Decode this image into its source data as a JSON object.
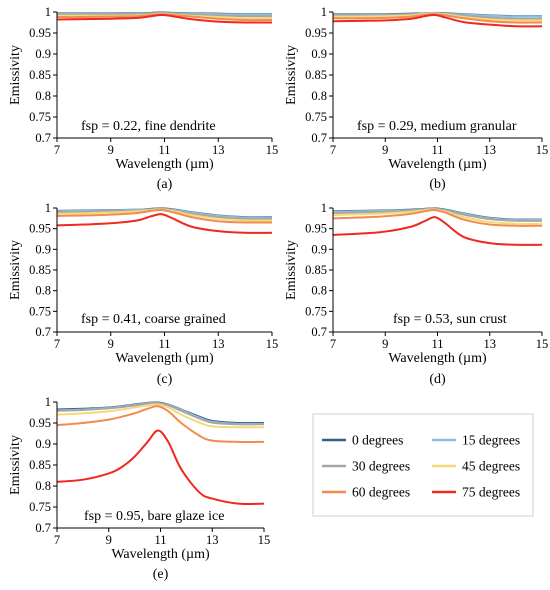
{
  "colors": {
    "0 degrees": "#2f5f8a",
    "15 degrees": "#8dbfe0",
    "30 degrees": "#a6a6a6",
    "45 degrees": "#f6d878",
    "60 degrees": "#f28c4e",
    "75 degrees": "#f0281e"
  },
  "legend": {
    "entries": [
      "0 degrees",
      "15 degrees",
      "30 degrees",
      "45 degrees",
      "60 degrees",
      "75 degrees"
    ]
  },
  "chart_data": [
    {
      "type": "line",
      "caption": "(a)",
      "annotation": "fsp = 0.22, fine dendrite",
      "xlabel": "Wavelength (µm)",
      "ylabel": "Emissivity",
      "xlim": [
        7,
        15
      ],
      "ylim": [
        0.7,
        1
      ],
      "xticks": [
        "7",
        "9",
        "11",
        "13",
        "15"
      ],
      "yticks": [
        "0.7",
        "0.75",
        "0.8",
        "0.85",
        "0.9",
        "0.95",
        "1"
      ],
      "x": [
        7,
        8,
        9,
        10,
        10.5,
        10.9,
        11.3,
        12,
        13,
        14,
        15
      ],
      "series": [
        {
          "name": "0 degrees",
          "values": [
            0.997,
            0.997,
            0.997,
            0.997,
            0.998,
            0.999,
            0.998,
            0.997,
            0.996,
            0.995,
            0.995
          ]
        },
        {
          "name": "15 degrees",
          "values": [
            0.996,
            0.996,
            0.996,
            0.996,
            0.997,
            0.998,
            0.997,
            0.996,
            0.995,
            0.994,
            0.994
          ]
        },
        {
          "name": "30 degrees",
          "values": [
            0.994,
            0.994,
            0.994,
            0.995,
            0.996,
            0.997,
            0.996,
            0.994,
            0.992,
            0.99,
            0.99
          ]
        },
        {
          "name": "45 degrees",
          "values": [
            0.991,
            0.991,
            0.991,
            0.992,
            0.994,
            0.996,
            0.994,
            0.991,
            0.988,
            0.985,
            0.985
          ]
        },
        {
          "name": "60 degrees",
          "values": [
            0.988,
            0.988,
            0.989,
            0.99,
            0.993,
            0.995,
            0.993,
            0.989,
            0.984,
            0.981,
            0.981
          ]
        },
        {
          "name": "75 degrees",
          "values": [
            0.982,
            0.983,
            0.984,
            0.986,
            0.99,
            0.993,
            0.99,
            0.983,
            0.977,
            0.975,
            0.975
          ]
        }
      ]
    },
    {
      "type": "line",
      "caption": "(b)",
      "annotation": "fsp = 0.29, medium granular",
      "xlabel": "Wavelength (µm)",
      "ylabel": "Emissivity",
      "xlim": [
        7,
        15
      ],
      "ylim": [
        0.7,
        1
      ],
      "xticks": [
        "7",
        "9",
        "11",
        "13",
        "15"
      ],
      "yticks": [
        "0.7",
        "0.75",
        "0.8",
        "0.85",
        "0.9",
        "0.95",
        "1"
      ],
      "x": [
        7,
        8,
        9,
        10,
        10.5,
        10.9,
        11.3,
        12,
        13,
        14,
        15
      ],
      "series": [
        {
          "name": "0 degrees",
          "values": [
            0.995,
            0.995,
            0.995,
            0.996,
            0.997,
            0.998,
            0.997,
            0.995,
            0.992,
            0.99,
            0.99
          ]
        },
        {
          "name": "15 degrees",
          "values": [
            0.994,
            0.994,
            0.994,
            0.995,
            0.997,
            0.998,
            0.996,
            0.994,
            0.991,
            0.989,
            0.989
          ]
        },
        {
          "name": "30 degrees",
          "values": [
            0.992,
            0.992,
            0.992,
            0.994,
            0.996,
            0.997,
            0.995,
            0.991,
            0.987,
            0.984,
            0.984
          ]
        },
        {
          "name": "45 degrees",
          "values": [
            0.989,
            0.989,
            0.99,
            0.992,
            0.995,
            0.996,
            0.994,
            0.988,
            0.982,
            0.98,
            0.98
          ]
        },
        {
          "name": "60 degrees",
          "values": [
            0.985,
            0.985,
            0.986,
            0.989,
            0.993,
            0.995,
            0.992,
            0.985,
            0.978,
            0.975,
            0.975
          ]
        },
        {
          "name": "75 degrees",
          "values": [
            0.978,
            0.979,
            0.98,
            0.984,
            0.99,
            0.993,
            0.987,
            0.976,
            0.97,
            0.966,
            0.966
          ]
        }
      ]
    },
    {
      "type": "line",
      "caption": "(c)",
      "annotation": "fsp = 0.41, coarse grained",
      "xlabel": "Wavelength (µm)",
      "ylabel": "Emissivity",
      "xlim": [
        7,
        15
      ],
      "ylim": [
        0.7,
        1
      ],
      "xticks": [
        "7",
        "9",
        "11",
        "13",
        "15"
      ],
      "yticks": [
        "0.7",
        "0.75",
        "0.8",
        "0.85",
        "0.9",
        "0.95",
        "1"
      ],
      "x": [
        7,
        8,
        9,
        10,
        10.5,
        10.9,
        11.3,
        12,
        13,
        14,
        15
      ],
      "series": [
        {
          "name": "0 degrees",
          "values": [
            0.993,
            0.994,
            0.995,
            0.996,
            0.998,
            0.999,
            0.997,
            0.99,
            0.982,
            0.978,
            0.978
          ]
        },
        {
          "name": "15 degrees",
          "values": [
            0.992,
            0.993,
            0.994,
            0.996,
            0.997,
            0.998,
            0.996,
            0.989,
            0.981,
            0.977,
            0.977
          ]
        },
        {
          "name": "30 degrees",
          "values": [
            0.99,
            0.991,
            0.992,
            0.994,
            0.996,
            0.997,
            0.995,
            0.986,
            0.978,
            0.974,
            0.974
          ]
        },
        {
          "name": "45 degrees",
          "values": [
            0.986,
            0.987,
            0.989,
            0.992,
            0.995,
            0.996,
            0.993,
            0.983,
            0.974,
            0.97,
            0.97
          ]
        },
        {
          "name": "60 degrees",
          "values": [
            0.981,
            0.982,
            0.984,
            0.988,
            0.993,
            0.995,
            0.99,
            0.978,
            0.968,
            0.965,
            0.965
          ]
        },
        {
          "name": "75 degrees",
          "values": [
            0.958,
            0.96,
            0.963,
            0.97,
            0.98,
            0.985,
            0.975,
            0.955,
            0.944,
            0.94,
            0.94
          ]
        }
      ]
    },
    {
      "type": "line",
      "caption": "(d)",
      "annotation": "fsp = 0.53, sun crust",
      "xlabel": "Wavelength (µm)",
      "ylabel": "Emissivity",
      "xlim": [
        7,
        15
      ],
      "ylim": [
        0.7,
        1
      ],
      "xticks": [
        "7",
        "9",
        "11",
        "13",
        "15"
      ],
      "yticks": [
        "0.7",
        "0.75",
        "0.8",
        "0.85",
        "0.9",
        "0.95",
        "1"
      ],
      "x": [
        7,
        8,
        9,
        10,
        10.5,
        10.9,
        11.3,
        12,
        13,
        14,
        15
      ],
      "series": [
        {
          "name": "0 degrees",
          "values": [
            0.992,
            0.993,
            0.994,
            0.996,
            0.998,
            0.999,
            0.996,
            0.987,
            0.976,
            0.972,
            0.972
          ]
        },
        {
          "name": "15 degrees",
          "values": [
            0.991,
            0.992,
            0.993,
            0.995,
            0.997,
            0.998,
            0.995,
            0.986,
            0.975,
            0.971,
            0.971
          ]
        },
        {
          "name": "30 degrees",
          "values": [
            0.988,
            0.989,
            0.991,
            0.994,
            0.996,
            0.997,
            0.994,
            0.984,
            0.973,
            0.969,
            0.969
          ]
        },
        {
          "name": "45 degrees",
          "values": [
            0.983,
            0.985,
            0.987,
            0.991,
            0.995,
            0.996,
            0.992,
            0.978,
            0.966,
            0.962,
            0.962
          ]
        },
        {
          "name": "60 degrees",
          "values": [
            0.975,
            0.977,
            0.98,
            0.986,
            0.992,
            0.995,
            0.989,
            0.972,
            0.96,
            0.957,
            0.957
          ]
        },
        {
          "name": "75 degrees",
          "values": [
            0.935,
            0.938,
            0.943,
            0.955,
            0.968,
            0.978,
            0.963,
            0.93,
            0.915,
            0.911,
            0.911
          ]
        }
      ]
    },
    {
      "type": "line",
      "caption": "(e)",
      "annotation": "fsp = 0.95, bare glaze ice",
      "xlabel": "Wavelength (µm)",
      "ylabel": "Emissivity",
      "xlim": [
        7,
        15
      ],
      "ylim": [
        0.7,
        1
      ],
      "xticks": [
        "7",
        "9",
        "11",
        "13",
        "15"
      ],
      "yticks": [
        "0.7",
        "0.75",
        "0.8",
        "0.85",
        "0.9",
        "0.95",
        "1"
      ],
      "x": [
        7,
        8,
        9,
        9.5,
        10,
        10.5,
        10.9,
        11.3,
        11.8,
        12.5,
        13,
        14,
        15
      ],
      "series": [
        {
          "name": "0 degrees",
          "values": [
            0.982,
            0.984,
            0.987,
            0.99,
            0.994,
            0.998,
            0.999,
            0.994,
            0.982,
            0.965,
            0.955,
            0.95,
            0.95
          ]
        },
        {
          "name": "15 degrees",
          "values": [
            0.98,
            0.982,
            0.986,
            0.989,
            0.993,
            0.997,
            0.998,
            0.993,
            0.981,
            0.963,
            0.953,
            0.948,
            0.948
          ]
        },
        {
          "name": "30 degrees",
          "values": [
            0.979,
            0.981,
            0.985,
            0.988,
            0.992,
            0.996,
            0.997,
            0.992,
            0.979,
            0.961,
            0.951,
            0.947,
            0.947
          ]
        },
        {
          "name": "45 degrees",
          "values": [
            0.97,
            0.973,
            0.978,
            0.982,
            0.987,
            0.992,
            0.994,
            0.987,
            0.97,
            0.951,
            0.942,
            0.94,
            0.94
          ]
        },
        {
          "name": "60 degrees",
          "values": [
            0.945,
            0.95,
            0.958,
            0.965,
            0.973,
            0.984,
            0.99,
            0.978,
            0.95,
            0.92,
            0.908,
            0.905,
            0.905
          ]
        },
        {
          "name": "75 degrees",
          "values": [
            0.81,
            0.815,
            0.83,
            0.845,
            0.87,
            0.905,
            0.932,
            0.905,
            0.84,
            0.785,
            0.77,
            0.758,
            0.758
          ]
        }
      ]
    }
  ]
}
